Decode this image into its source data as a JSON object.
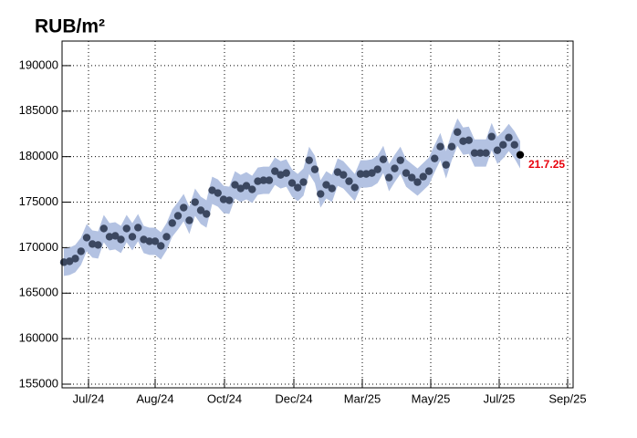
{
  "chart_data": {
    "type": "band-scatter",
    "title": "RUB/m²",
    "values": [
      168400,
      168500,
      168800,
      169600,
      171100,
      170400,
      170300,
      172100,
      171200,
      171300,
      170900,
      172100,
      171200,
      172200,
      170900,
      170700,
      170700,
      170200,
      171200,
      172700,
      173500,
      174400,
      173000,
      175000,
      174100,
      173700,
      176300,
      176000,
      175300,
      175200,
      176900,
      176500,
      176800,
      176400,
      177300,
      177400,
      177400,
      178400,
      178000,
      178200,
      177100,
      176600,
      177200,
      179600,
      178600,
      175900,
      176900,
      176500,
      178300,
      178000,
      177300,
      176600,
      178100,
      178100,
      178200,
      178600,
      179700,
      177700,
      178700,
      179600,
      178200,
      177700,
      177200,
      177800,
      178400,
      179800,
      181100,
      179100,
      181100,
      182700,
      181700,
      181800,
      180400,
      180400,
      180400,
      182200,
      180700,
      181300,
      182100,
      181300,
      180200
    ],
    "band": 1500,
    "color": "#3b4760",
    "band_color": "#b3c2e2",
    "last_color": "#000000",
    "annotation": "21.7.25",
    "annotation_color": "#e8000b",
    "ylim": [
      154600,
      192700
    ],
    "yticks": [
      155000,
      160000,
      165000,
      170000,
      175000,
      180000,
      185000,
      190000
    ],
    "xlim": [
      -0.32,
      89.28
    ],
    "xticks": [
      {
        "value": 4.32,
        "label": "Jul/24"
      },
      {
        "value": 16,
        "label": "Aug/24"
      },
      {
        "value": 28.16,
        "label": "Oct/24"
      },
      {
        "value": 40.32,
        "label": "Dec/24"
      },
      {
        "value": 52.32,
        "label": "Mar/25"
      },
      {
        "value": 64.32,
        "label": "May/25"
      },
      {
        "value": 76.32,
        "label": "Jul/25"
      },
      {
        "value": 88.32,
        "label": "Sep/25"
      }
    ],
    "grid": true
  }
}
